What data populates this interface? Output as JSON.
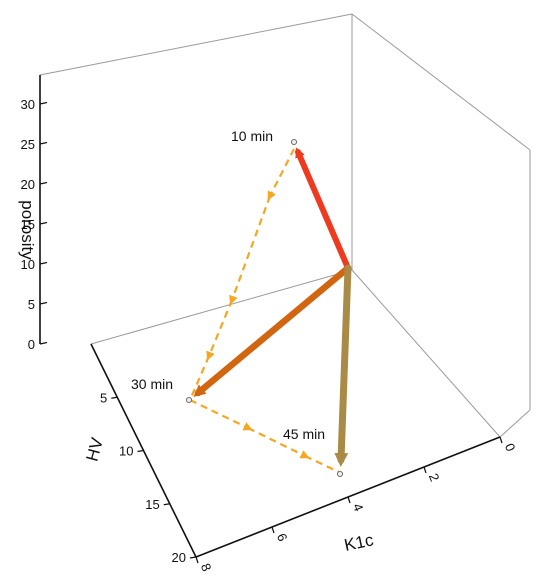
{
  "chart_data": {
    "type": "scatter",
    "title": "",
    "z_axis": {
      "label": "porosity",
      "ticks": [
        "0",
        "5",
        "10",
        "15",
        "20",
        "25",
        "30"
      ],
      "range": [
        0,
        32
      ]
    },
    "y_axis": {
      "label": "HV",
      "ticks": [
        "5",
        "10",
        "15",
        "20"
      ],
      "range": [
        0,
        20
      ]
    },
    "x_axis": {
      "label": "K1c",
      "ticks": [
        "0",
        "2",
        "4",
        "6",
        "8"
      ],
      "range": [
        0,
        8
      ]
    },
    "points": [
      {
        "label": "10 min",
        "k1c": 0.0,
        "hv": 0.0,
        "porosity": 25.0
      },
      {
        "label": "30 min",
        "k1c": 0.0,
        "hv": 5.3,
        "porosity": 0.0
      },
      {
        "label": "45 min",
        "k1c": 4.3,
        "hv": 0.0,
        "porosity": 0.0
      }
    ],
    "origin": {
      "k1c": 0.0,
      "hv": 0.0,
      "porosity": 10.0
    },
    "vector_colors": [
      "#ee3a1e",
      "#d2650f",
      "#a98b47"
    ],
    "path_color": "#f5a623",
    "grid": false
  }
}
